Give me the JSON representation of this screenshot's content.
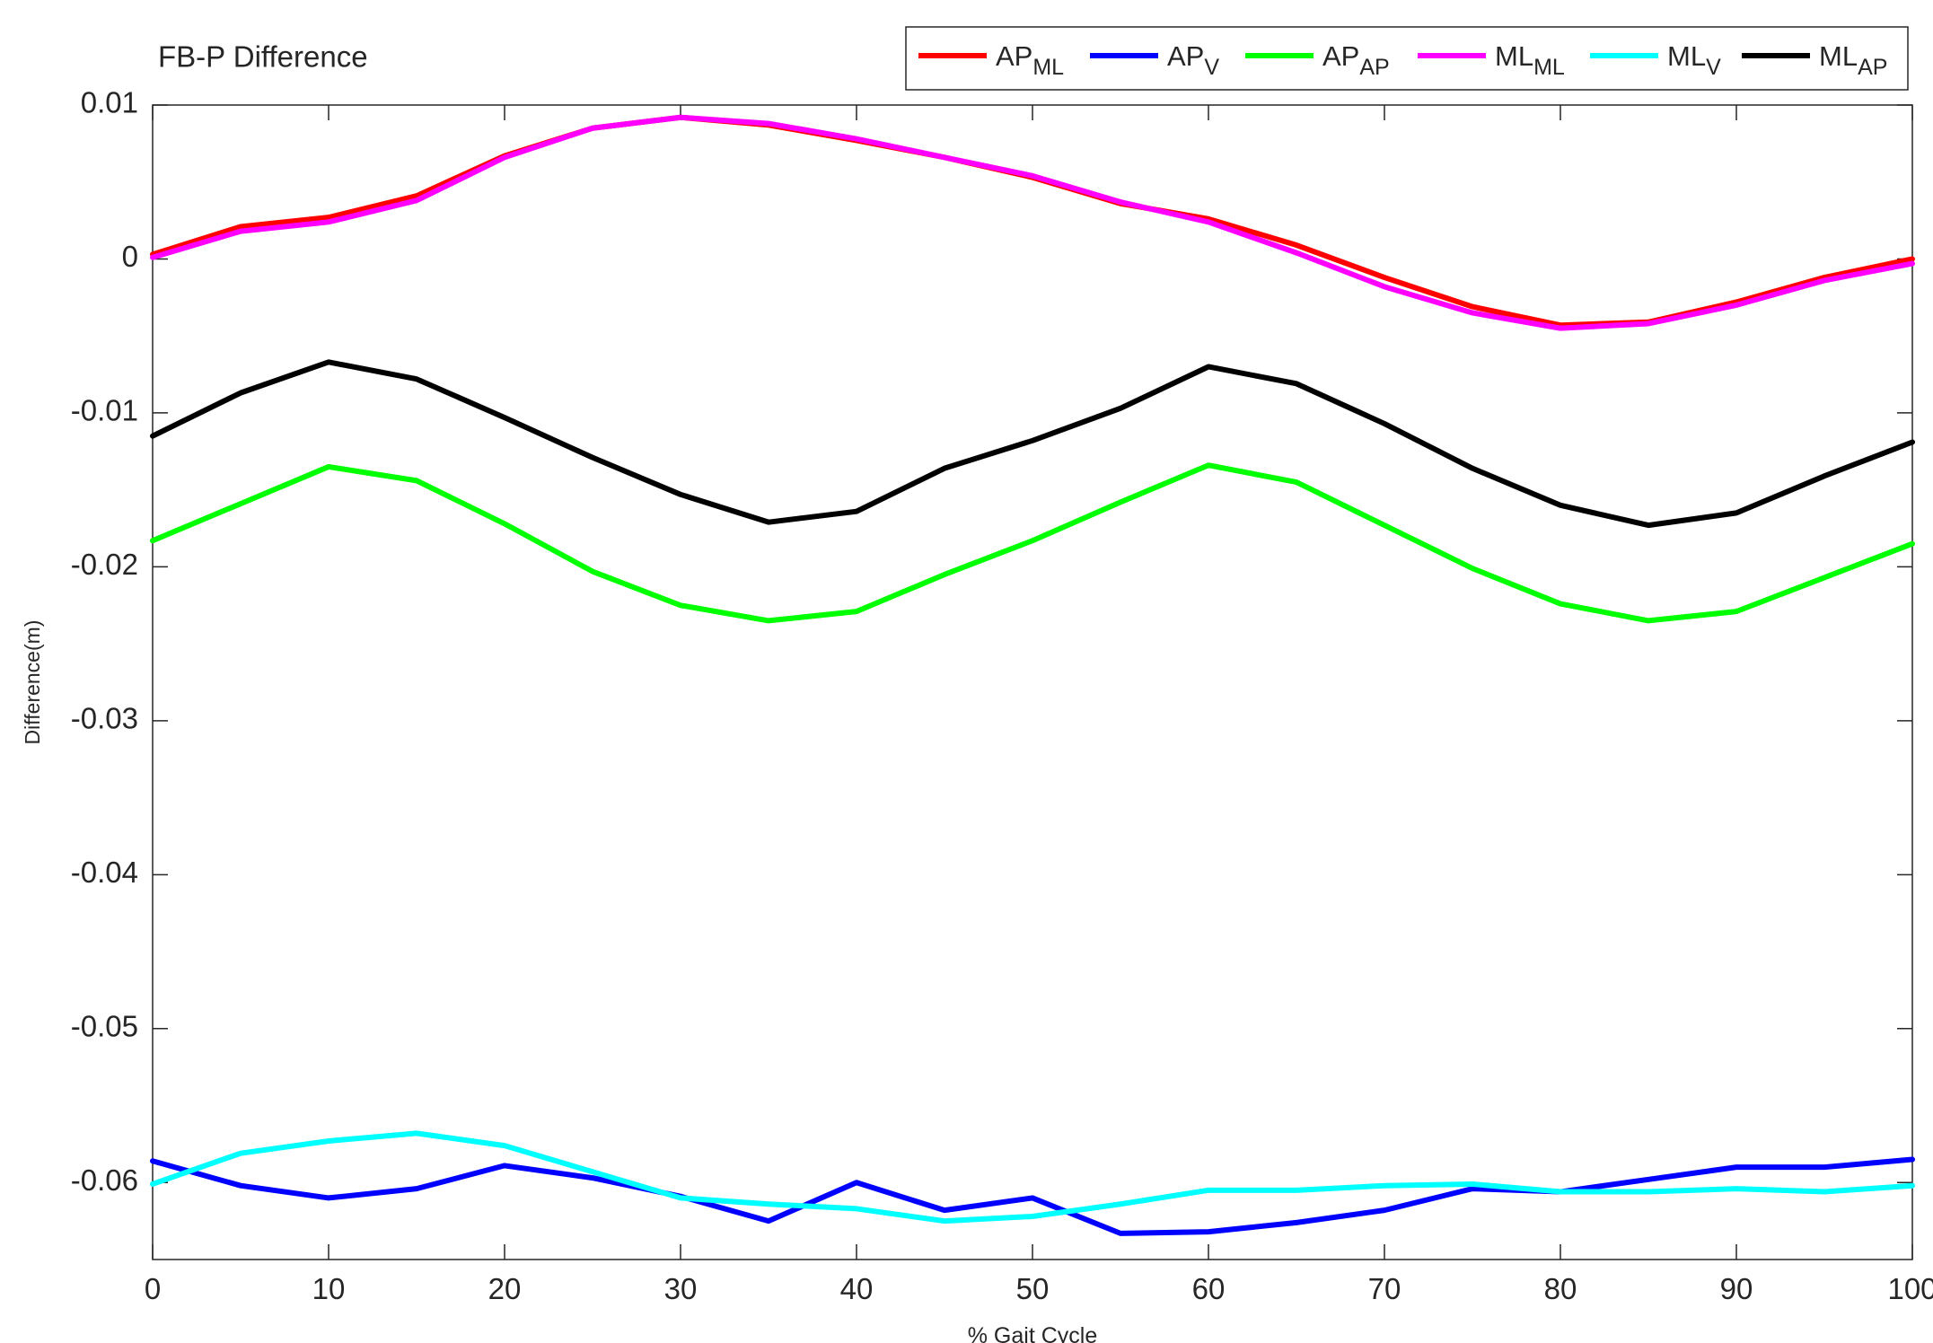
{
  "chart_data": {
    "type": "line",
    "title": "FB-P Difference",
    "x_label": "% Gait Cycle",
    "y_label": "Difference(m)",
    "x": [
      0,
      5,
      10,
      15,
      20,
      25,
      30,
      35,
      40,
      45,
      50,
      55,
      60,
      65,
      70,
      75,
      80,
      85,
      90,
      95,
      100
    ],
    "xlim": [
      0,
      100
    ],
    "xticks": [
      0,
      10,
      20,
      30,
      40,
      50,
      60,
      70,
      80,
      90,
      100
    ],
    "ylim": [
      -0.065,
      0.01
    ],
    "yticks": [
      0.01,
      0,
      -0.01,
      -0.02,
      -0.03,
      -0.04,
      -0.05,
      -0.06
    ],
    "grid": false,
    "legend": "top-right",
    "series": [
      {
        "name": "AP",
        "subscript": "ML",
        "color": "#ff0000",
        "values": [
          0.0003,
          0.0021,
          0.0027,
          0.0041,
          0.0067,
          0.0085,
          0.0092,
          0.0087,
          0.0077,
          0.0066,
          0.0053,
          0.0036,
          0.0026,
          0.0009,
          -0.0012,
          -0.0031,
          -0.0043,
          -0.0041,
          -0.0028,
          -0.0012,
          0
        ]
      },
      {
        "name": "AP",
        "subscript": "V",
        "color": "#0000ff",
        "values": [
          -0.0586,
          -0.0602,
          -0.061,
          -0.0604,
          -0.0589,
          -0.0597,
          -0.0609,
          -0.0625,
          -0.06,
          -0.0618,
          -0.061,
          -0.0633,
          -0.0632,
          -0.0626,
          -0.0618,
          -0.0604,
          -0.0606,
          -0.0598,
          -0.059,
          -0.059,
          -0.0585
        ]
      },
      {
        "name": "AP",
        "subscript": "AP",
        "color": "#00ff00",
        "values": [
          -0.0183,
          -0.0159,
          -0.0135,
          -0.0144,
          -0.0172,
          -0.0203,
          -0.0225,
          -0.0235,
          -0.0229,
          -0.0205,
          -0.0183,
          -0.0158,
          -0.0134,
          -0.0145,
          -0.0173,
          -0.0201,
          -0.0224,
          -0.0235,
          -0.0229,
          -0.0207,
          -0.0185
        ]
      },
      {
        "name": "ML",
        "subscript": "ML",
        "color": "#ff00ff",
        "values": [
          0.0001,
          0.0018,
          0.0024,
          0.0038,
          0.0066,
          0.0085,
          0.0092,
          0.0088,
          0.0078,
          0.0066,
          0.0054,
          0.0037,
          0.0024,
          0.0004,
          -0.0018,
          -0.0035,
          -0.0045,
          -0.0042,
          -0.003,
          -0.0014,
          -0.0003
        ]
      },
      {
        "name": "ML",
        "subscript": "V",
        "color": "#00ffff",
        "values": [
          -0.0601,
          -0.0581,
          -0.0573,
          -0.0568,
          -0.0576,
          -0.0593,
          -0.061,
          -0.0614,
          -0.0617,
          -0.0625,
          -0.0622,
          -0.0614,
          -0.0605,
          -0.0605,
          -0.0602,
          -0.0601,
          -0.0606,
          -0.0606,
          -0.0604,
          -0.0606,
          -0.0602
        ]
      },
      {
        "name": "ML",
        "subscript": "AP",
        "color": "#000000",
        "values": [
          -0.0115,
          -0.0087,
          -0.0067,
          -0.0078,
          -0.0103,
          -0.0129,
          -0.0153,
          -0.0171,
          -0.0164,
          -0.0136,
          -0.0118,
          -0.0097,
          -0.007,
          -0.0081,
          -0.0107,
          -0.0136,
          -0.016,
          -0.0173,
          -0.0165,
          -0.0141,
          -0.0119
        ]
      }
    ]
  }
}
